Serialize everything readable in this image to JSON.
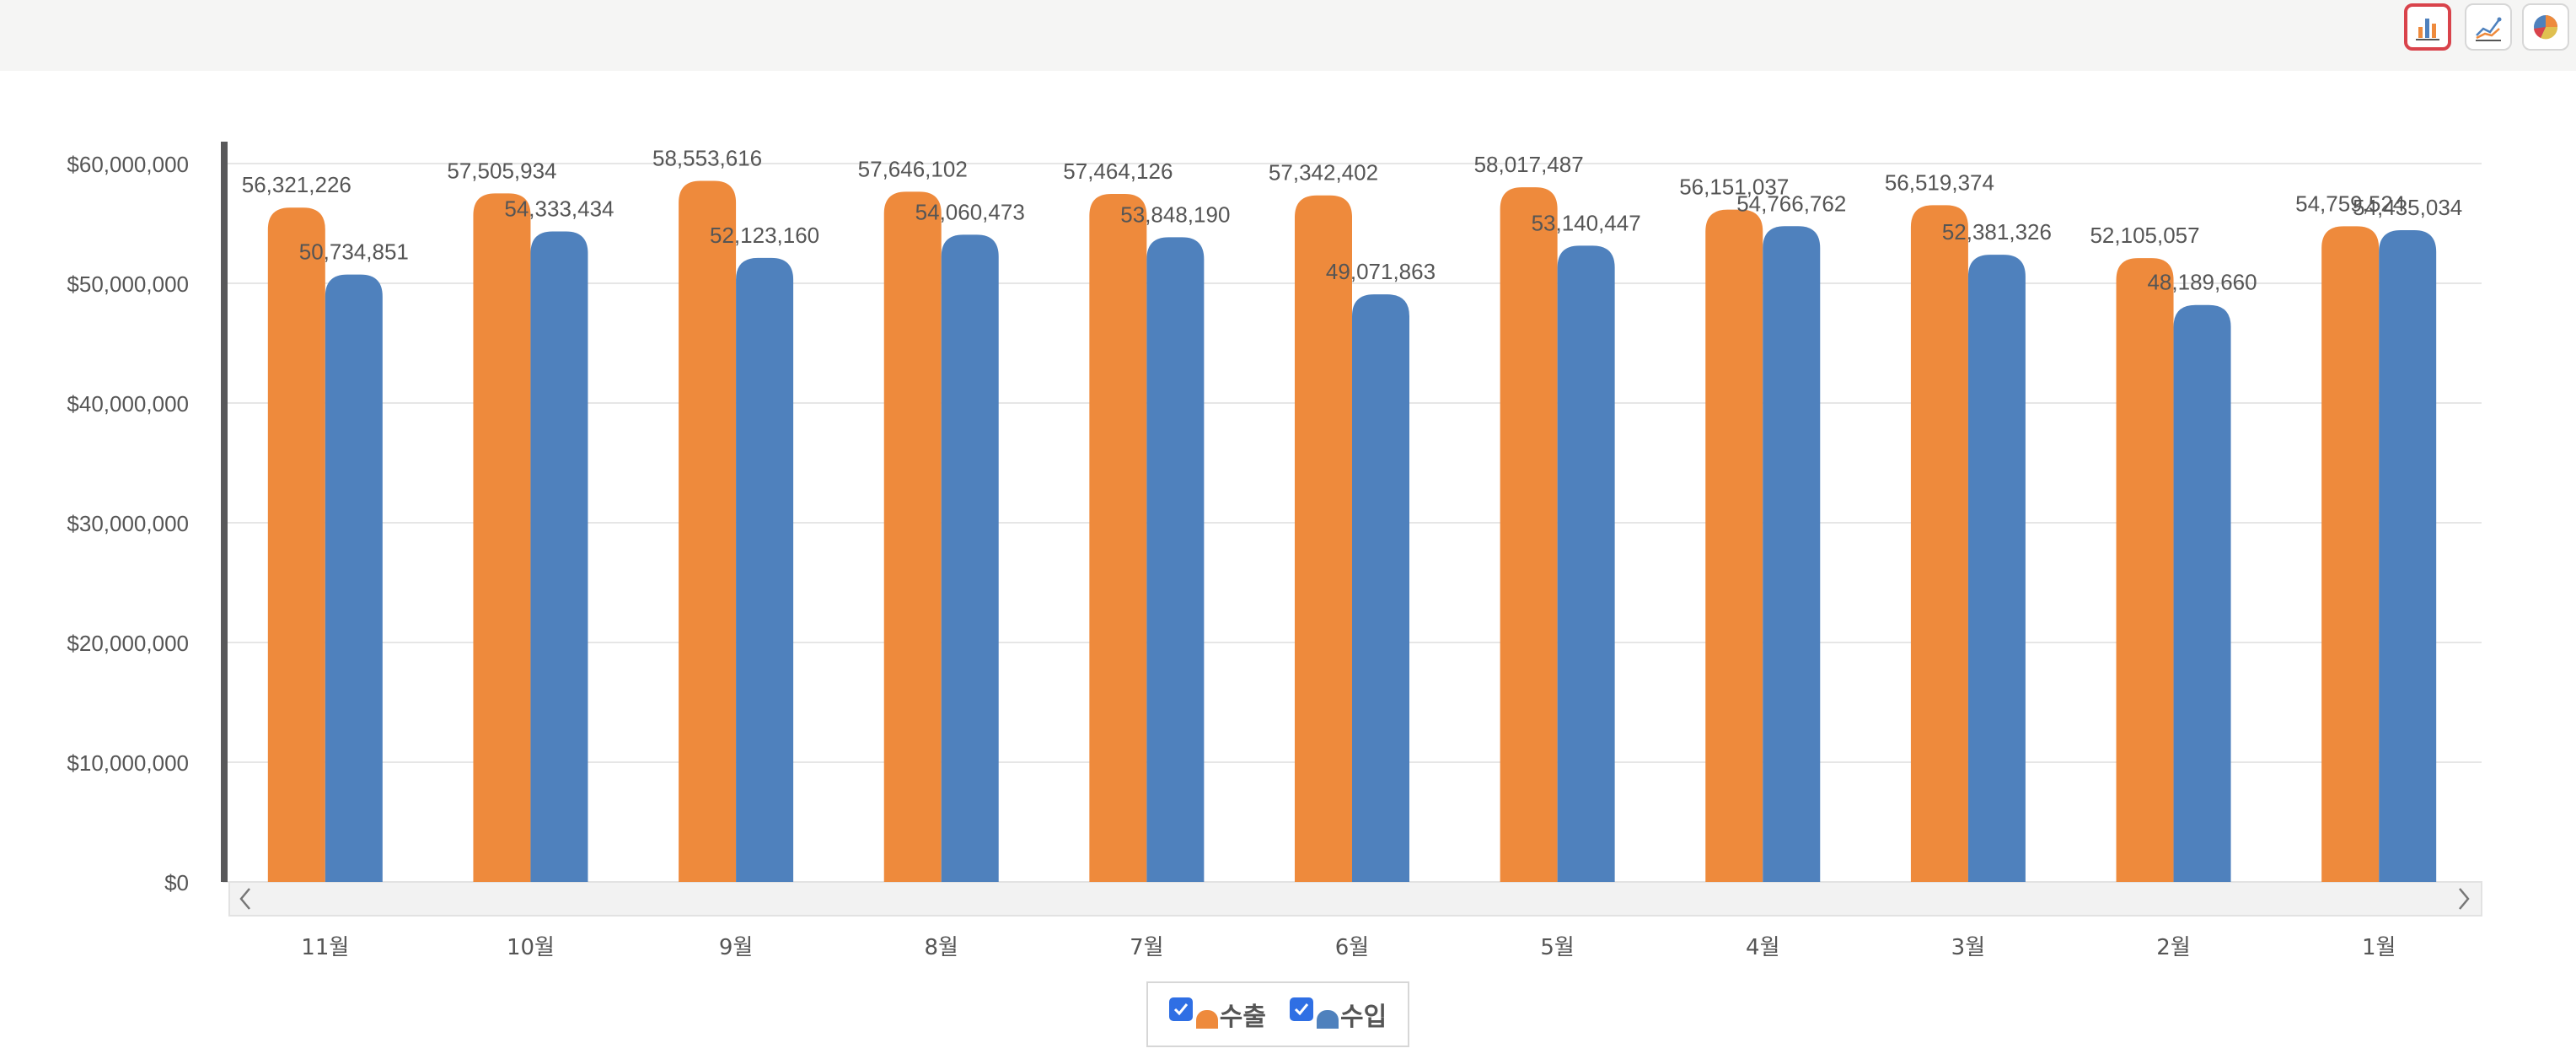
{
  "toolbar": {
    "buttons": [
      {
        "icon": "bar-chart-icon",
        "active": true
      },
      {
        "icon": "line-chart-icon",
        "active": false
      },
      {
        "icon": "pie-chart-icon",
        "active": false
      }
    ]
  },
  "colors": {
    "export": "#ee8a3c",
    "import": "#4f81bd",
    "axis": "#58585a",
    "grid": "#e6e6e6",
    "text": "#555555"
  },
  "chart_data": {
    "type": "bar",
    "categories": [
      "11월",
      "10월",
      "9월",
      "8월",
      "7월",
      "6월",
      "5월",
      "4월",
      "3월",
      "2월",
      "1월"
    ],
    "series": [
      {
        "name": "수출",
        "values": [
          56321226,
          57505934,
          58553616,
          57646102,
          57464126,
          57342402,
          58017487,
          56151037,
          56519374,
          52105057,
          54759524
        ],
        "labels": [
          "56,321,226",
          "57,505,934",
          "58,553,616",
          "57,646,102",
          "57,464,126",
          "57,342,402",
          "58,017,487",
          "56,151,037",
          "56,519,374",
          "52,105,057",
          "54,759,524"
        ]
      },
      {
        "name": "수입",
        "values": [
          50734851,
          54333434,
          52123160,
          54060473,
          53848190,
          49071863,
          53140447,
          54766762,
          52381326,
          48189660,
          54435034
        ],
        "labels": [
          "50,734,851",
          "54,333,434",
          "52,123,160",
          "54,060,473",
          "53,848,190",
          "49,071,863",
          "53,140,447",
          "54,766,762",
          "52,381,326",
          "48,189,660",
          "54,435,034"
        ]
      }
    ],
    "yticks": [
      "$0",
      "$10,000,000",
      "$20,000,000",
      "$30,000,000",
      "$40,000,000",
      "$50,000,000",
      "$60,000,000"
    ],
    "ylim": [
      0,
      60000000
    ],
    "grid": true,
    "legend": "bottom-center"
  }
}
